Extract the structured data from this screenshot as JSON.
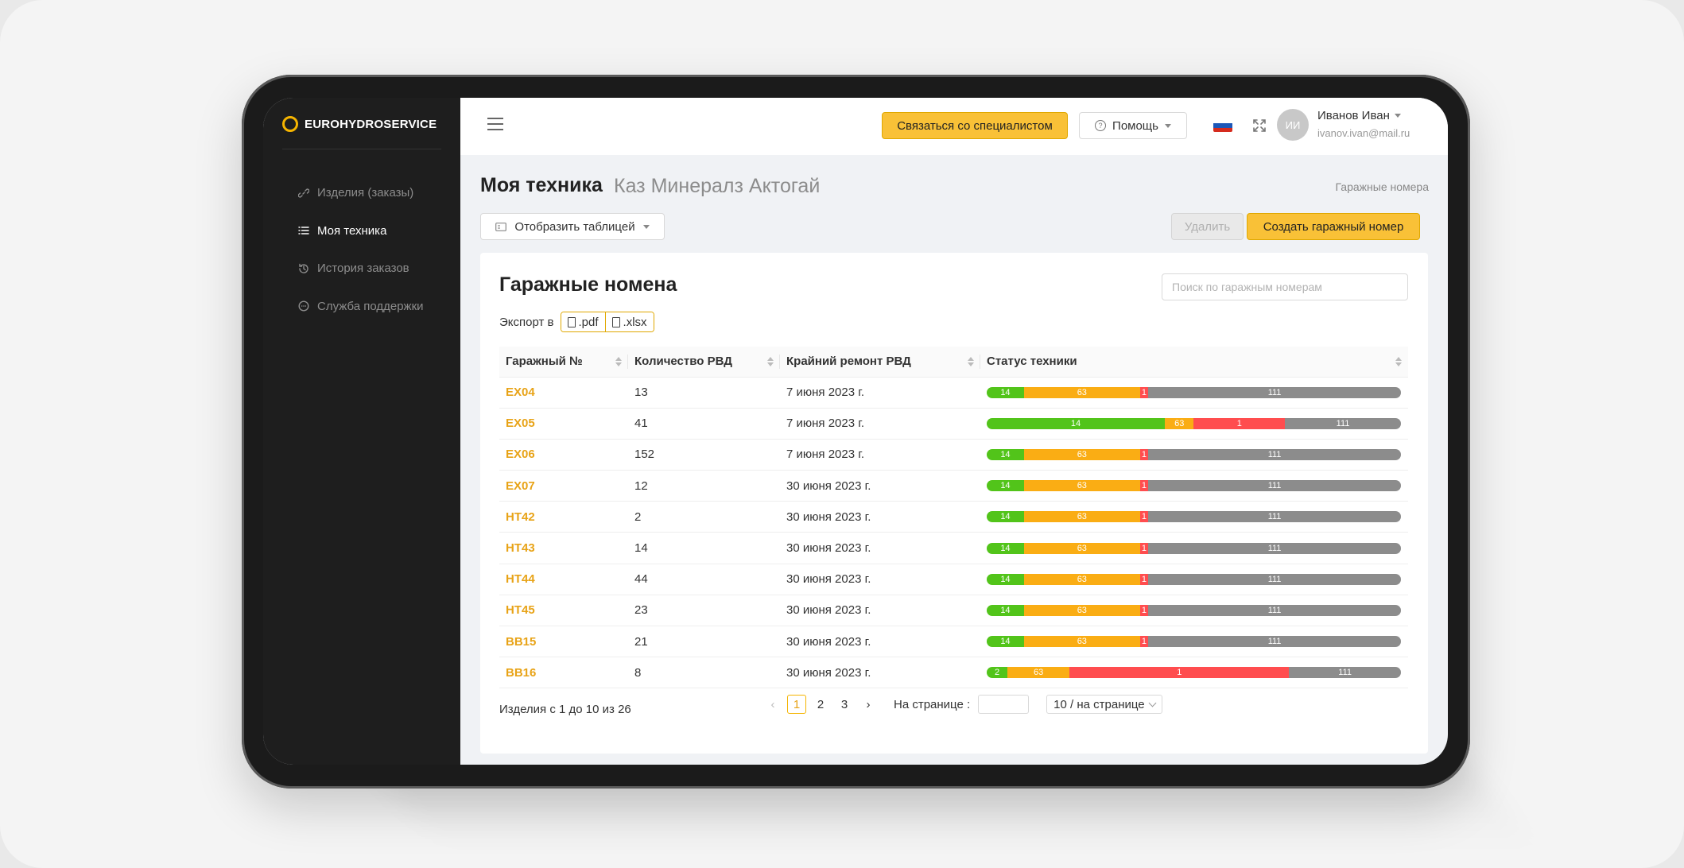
{
  "brand": {
    "name": "EUROHYDROSERVICE",
    "accent": "#F5B400"
  },
  "sidebar": {
    "items": [
      {
        "label": "Изделия (заказы)",
        "icon": "link-icon",
        "active": false
      },
      {
        "label": "Моя техника",
        "icon": "list-icon",
        "active": true
      },
      {
        "label": "История заказов",
        "icon": "history-icon",
        "active": false
      },
      {
        "label": "Служба поддержки",
        "icon": "chat-icon",
        "active": false
      }
    ]
  },
  "topbar": {
    "contact_label": "Связаться со специалистом",
    "help_label": "Помощь",
    "user": {
      "initials": "ИИ",
      "name": "Иванов Иван",
      "email": "ivanov.ivan@mail.ru"
    },
    "language_flag": "ru-flag-icon"
  },
  "page": {
    "title": "Моя техника",
    "subtitle": "Каз Минералз Актогай",
    "breadcrumb": "Гаражные номера",
    "view_label": "Отобразить таблицей",
    "delete_label": "Удалить",
    "create_label": "Создать гаражный номер"
  },
  "card": {
    "title": "Гаражные номена",
    "search_placeholder": "Поиск по гаражным номерам",
    "export_label": "Экспорт в",
    "export_pdf": ".pdf",
    "export_xlsx": ".xlsx"
  },
  "table": {
    "headers": [
      "Гаражный №",
      "Количество РВД",
      "Крайний ремонт РВД",
      "Статус техники"
    ],
    "status_colors": {
      "green": "#52C41A",
      "orange": "#FAAD14",
      "red": "#FF4D4F",
      "gray": "#8C8C8C"
    },
    "rows": [
      {
        "garage": "EX04",
        "count": "13",
        "repair": "7 июня 2023 г.",
        "status": [
          {
            "label": "14",
            "color": "green",
            "share": 0.09
          },
          {
            "label": "63",
            "color": "orange",
            "share": 0.28
          },
          {
            "label": "1",
            "color": "red",
            "share": 0.02
          },
          {
            "label": "111",
            "color": "gray",
            "share": 0.61
          }
        ]
      },
      {
        "garage": "EX05",
        "count": "41",
        "repair": "7 июня 2023 г.",
        "status": [
          {
            "label": "14",
            "color": "green",
            "share": 0.43
          },
          {
            "label": "63",
            "color": "orange",
            "share": 0.07
          },
          {
            "label": "1",
            "color": "red",
            "share": 0.22
          },
          {
            "label": "111",
            "color": "gray",
            "share": 0.28
          }
        ]
      },
      {
        "garage": "EX06",
        "count": "152",
        "repair": "7 июня 2023 г.",
        "status": [
          {
            "label": "14",
            "color": "green",
            "share": 0.09
          },
          {
            "label": "63",
            "color": "orange",
            "share": 0.28
          },
          {
            "label": "1",
            "color": "red",
            "share": 0.02
          },
          {
            "label": "111",
            "color": "gray",
            "share": 0.61
          }
        ]
      },
      {
        "garage": "EX07",
        "count": "12",
        "repair": "30 июня 2023 г.",
        "status": [
          {
            "label": "14",
            "color": "green",
            "share": 0.09
          },
          {
            "label": "63",
            "color": "orange",
            "share": 0.28
          },
          {
            "label": "1",
            "color": "red",
            "share": 0.02
          },
          {
            "label": "111",
            "color": "gray",
            "share": 0.61
          }
        ]
      },
      {
        "garage": "HT42",
        "count": "2",
        "repair": "30 июня 2023 г.",
        "status": [
          {
            "label": "14",
            "color": "green",
            "share": 0.09
          },
          {
            "label": "63",
            "color": "orange",
            "share": 0.28
          },
          {
            "label": "1",
            "color": "red",
            "share": 0.02
          },
          {
            "label": "111",
            "color": "gray",
            "share": 0.61
          }
        ]
      },
      {
        "garage": "HT43",
        "count": "14",
        "repair": "30 июня 2023 г.",
        "status": [
          {
            "label": "14",
            "color": "green",
            "share": 0.09
          },
          {
            "label": "63",
            "color": "orange",
            "share": 0.28
          },
          {
            "label": "1",
            "color": "red",
            "share": 0.02
          },
          {
            "label": "111",
            "color": "gray",
            "share": 0.61
          }
        ]
      },
      {
        "garage": "HT44",
        "count": "44",
        "repair": "30 июня 2023 г.",
        "status": [
          {
            "label": "14",
            "color": "green",
            "share": 0.09
          },
          {
            "label": "63",
            "color": "orange",
            "share": 0.28
          },
          {
            "label": "1",
            "color": "red",
            "share": 0.02
          },
          {
            "label": "111",
            "color": "gray",
            "share": 0.61
          }
        ]
      },
      {
        "garage": "HT45",
        "count": "23",
        "repair": "30 июня 2023 г.",
        "status": [
          {
            "label": "14",
            "color": "green",
            "share": 0.09
          },
          {
            "label": "63",
            "color": "orange",
            "share": 0.28
          },
          {
            "label": "1",
            "color": "red",
            "share": 0.02
          },
          {
            "label": "111",
            "color": "gray",
            "share": 0.61
          }
        ]
      },
      {
        "garage": "BB15",
        "count": "21",
        "repair": "30 июня 2023 г.",
        "status": [
          {
            "label": "14",
            "color": "green",
            "share": 0.09
          },
          {
            "label": "63",
            "color": "orange",
            "share": 0.28
          },
          {
            "label": "1",
            "color": "red",
            "share": 0.02
          },
          {
            "label": "111",
            "color": "gray",
            "share": 0.61
          }
        ]
      },
      {
        "garage": "BB16",
        "count": "8",
        "repair": "30 июня 2023 г.",
        "status": [
          {
            "label": "2",
            "color": "green",
            "share": 0.05
          },
          {
            "label": "63",
            "color": "orange",
            "share": 0.15
          },
          {
            "label": "1",
            "color": "red",
            "share": 0.53
          },
          {
            "label": "111",
            "color": "gray",
            "share": 0.27
          }
        ]
      }
    ]
  },
  "pagination": {
    "summary": "Изделия с 1 до 10 из 26",
    "pages": [
      "1",
      "2",
      "3"
    ],
    "current_page": "1",
    "per_page_label": "На странице :",
    "page_size_label": "10 / на странице"
  }
}
